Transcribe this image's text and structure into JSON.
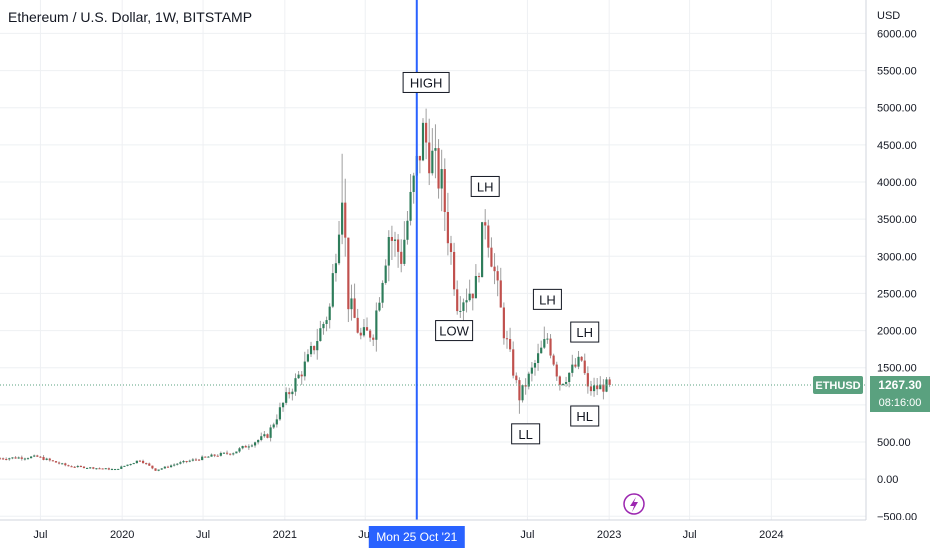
{
  "header": {
    "symbol_title": "Ethereum / U.S. Dollar, 1W, BITSTAMP"
  },
  "colors": {
    "up": "#2e7d5b",
    "down": "#c0504d",
    "wick": "#9e9e9e",
    "crosshair": "#2962ff",
    "price_tag": "#5aa17f",
    "grid": "#eef0f3",
    "text": "#131722"
  },
  "chart_data": {
    "type": "candlestick",
    "title": "Ethereum / U.S. Dollar, 1W, BITSTAMP",
    "symbol": "ETHUSD",
    "y_axis": {
      "unit_label": "USD",
      "range": [
        -550,
        6450
      ],
      "ticks": [
        -500,
        0,
        500,
        1000,
        1500,
        2000,
        2500,
        3000,
        3500,
        4000,
        4500,
        5000,
        5500,
        6000
      ],
      "tick_labels": [
        "−500.00",
        "0.00",
        "500.00",
        "",
        "1500.00",
        "2000.00",
        "2500.00",
        "3000.00",
        "3500.00",
        "4000.00",
        "4500.00",
        "5000.00",
        "5500.00",
        "6000.00"
      ]
    },
    "x_axis": {
      "range": [
        "2019-04-01",
        "2024-08-01"
      ],
      "ticks": [
        {
          "date": "2019-07-01",
          "label": "Jul"
        },
        {
          "date": "2020-01-01",
          "label": "2020"
        },
        {
          "date": "2020-07-01",
          "label": "Jul"
        },
        {
          "date": "2021-01-01",
          "label": "2021"
        },
        {
          "date": "2021-07-01",
          "label": "Jul"
        },
        {
          "date": "2022-07-01",
          "label": "Jul"
        },
        {
          "date": "2023-01-01",
          "label": "2023"
        },
        {
          "date": "2023-07-01",
          "label": "Jul"
        },
        {
          "date": "2024-01-01",
          "label": "2024"
        }
      ]
    },
    "grid": true,
    "crosshair": {
      "date": "2021-10-25",
      "label": "Mon 25 Oct '21"
    },
    "last_price": {
      "symbol": "ETHUSD",
      "value": "1267.30",
      "countdown": "08:16:00",
      "level": 1267.3
    },
    "annotations": [
      {
        "text": "HIGH",
        "date": "2021-11-15",
        "price": 5340
      },
      {
        "text": "LOW",
        "date": "2022-01-17",
        "price": 2000
      },
      {
        "text": "LH",
        "date": "2022-03-28",
        "price": 3940
      },
      {
        "text": "LH",
        "date": "2022-08-15",
        "price": 2420
      },
      {
        "text": "LL",
        "date": "2022-06-27",
        "price": 610
      },
      {
        "text": "LH",
        "date": "2022-11-07",
        "price": 1980
      },
      {
        "text": "HL",
        "date": "2022-11-07",
        "price": 850
      }
    ],
    "anchors": [
      {
        "date": "2019-04-01",
        "close": 280
      },
      {
        "date": "2019-06-24",
        "close": 300
      },
      {
        "date": "2019-09-02",
        "close": 175
      },
      {
        "date": "2019-12-16",
        "close": 130
      },
      {
        "date": "2020-02-10",
        "close": 260
      },
      {
        "date": "2020-03-16",
        "close": 120
      },
      {
        "date": "2020-05-04",
        "close": 210
      },
      {
        "date": "2020-07-27",
        "close": 320
      },
      {
        "date": "2020-09-07",
        "close": 360
      },
      {
        "date": "2020-11-23",
        "close": 590
      },
      {
        "date": "2021-01-04",
        "close": 1100
      },
      {
        "date": "2021-02-22",
        "close": 1600
      },
      {
        "date": "2021-04-12",
        "close": 2300
      },
      {
        "date": "2021-05-10",
        "close": 3950
      },
      {
        "date": "2021-05-24",
        "close": 2400
      },
      {
        "date": "2021-06-21",
        "close": 1900
      },
      {
        "date": "2021-07-19",
        "close": 2000
      },
      {
        "date": "2021-08-23",
        "close": 3300
      },
      {
        "date": "2021-09-20",
        "close": 3000
      },
      {
        "date": "2021-10-25",
        "close": 4200
      },
      {
        "date": "2021-11-08",
        "close": 4650
      },
      {
        "date": "2021-12-20",
        "close": 3950
      },
      {
        "date": "2022-01-24",
        "close": 2400
      },
      {
        "date": "2022-03-07",
        "close": 2600
      },
      {
        "date": "2022-03-28",
        "close": 3550
      },
      {
        "date": "2022-05-09",
        "close": 2000
      },
      {
        "date": "2022-06-13",
        "close": 1100
      },
      {
        "date": "2022-07-18",
        "close": 1550
      },
      {
        "date": "2022-08-15",
        "close": 1900
      },
      {
        "date": "2022-09-12",
        "close": 1300
      },
      {
        "date": "2022-10-31",
        "close": 1600
      },
      {
        "date": "2022-11-14",
        "close": 1200
      },
      {
        "date": "2023-01-02",
        "close": 1267
      }
    ],
    "peaks": [
      {
        "date": "2021-05-10",
        "high": 4380
      },
      {
        "date": "2021-11-08",
        "high": 4860
      },
      {
        "date": "2022-01-31",
        "low": 2170
      },
      {
        "date": "2022-06-13",
        "low": 880
      }
    ]
  }
}
